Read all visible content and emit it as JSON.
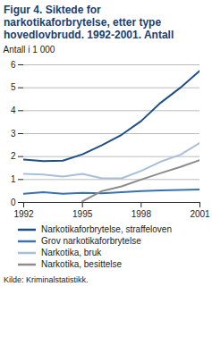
{
  "chart_data": {
    "type": "line",
    "title": "Figur 4. Siktede for narkotikaforbrytelse, etter type hovedlovbrudd. 1992-2001. Antall",
    "y_label": "Antall i 1 000",
    "source": "Kilde: Kriminalstatistikk.",
    "x": [
      1992,
      1993,
      1994,
      1995,
      1996,
      1997,
      1998,
      1999,
      2000,
      2001
    ],
    "xlim": [
      1992,
      2001
    ],
    "xticks": [
      1992,
      1995,
      1998,
      2001
    ],
    "ylim": [
      0,
      6
    ],
    "yticks": [
      0,
      1,
      2,
      3,
      4,
      5,
      6
    ],
    "grid": true,
    "series": [
      {
        "name": "Narkotikaforbrytelse, straffeloven",
        "color": "#1f4f88",
        "values": [
          1.87,
          1.8,
          1.82,
          2.1,
          2.5,
          2.95,
          3.55,
          4.35,
          5.0,
          5.75
        ]
      },
      {
        "name": "Grov narkotikaforbrytelse",
        "color": "#3a72ad",
        "values": [
          0.38,
          0.45,
          0.38,
          0.42,
          0.4,
          0.45,
          0.5,
          0.53,
          0.55,
          0.57
        ]
      },
      {
        "name": "Narkotika, bruk",
        "color": "#a7bfd9",
        "values": [
          1.25,
          1.22,
          1.13,
          1.25,
          1.05,
          1.05,
          1.38,
          1.78,
          2.08,
          2.6
        ]
      },
      {
        "name": "Narkotika, besittelse",
        "color": "#8c8c8c",
        "values": [
          null,
          null,
          null,
          0.05,
          0.5,
          0.7,
          1.0,
          1.28,
          1.55,
          1.85
        ]
      }
    ]
  }
}
